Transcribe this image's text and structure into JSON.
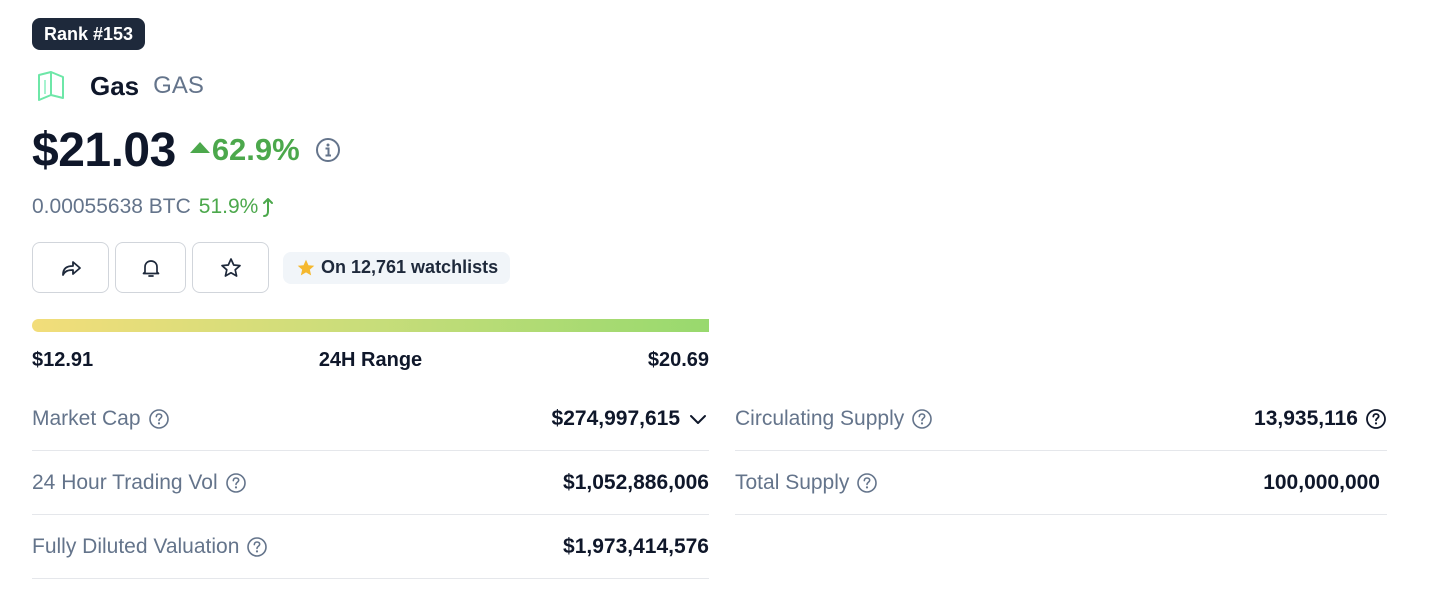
{
  "rank": {
    "label": "Rank #153"
  },
  "coin": {
    "name": "Gas",
    "symbol": "GAS"
  },
  "price": {
    "value": "$21.03",
    "change_pct": "62.9%",
    "change_direction": "up",
    "btc_value": "0.00055638 BTC",
    "btc_change_pct": "51.9%"
  },
  "actions": {
    "share_icon": "share-icon",
    "alert_icon": "bell-icon",
    "watchlist_icon": "star-icon",
    "watchlist_label": "On 12,761 watchlists"
  },
  "range_24h": {
    "low": "$12.91",
    "title": "24H Range",
    "high": "$20.69"
  },
  "stats_left": [
    {
      "label": "Market Cap",
      "value": "$274,997,615"
    },
    {
      "label": "24 Hour Trading Vol",
      "value": "$1,052,886,006"
    },
    {
      "label": "Fully Diluted Valuation",
      "value": "$1,973,414,576"
    }
  ],
  "stats_right": [
    {
      "label": "Circulating Supply",
      "value": "13,935,116"
    },
    {
      "label": "Total Supply",
      "value": "100,000,000"
    }
  ],
  "colors": {
    "positive": "#4ca84c",
    "badge_bg": "#1e293b",
    "muted_text": "#64748b",
    "logo": "#6ee7a8",
    "range_start": "#f2dd7a",
    "range_end": "#98d96e",
    "star": "#f5b82e"
  }
}
